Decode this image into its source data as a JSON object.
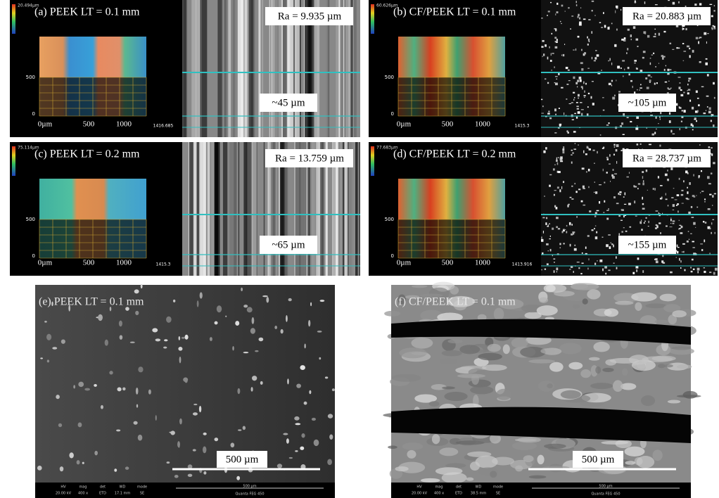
{
  "panels": [
    {
      "label": "(a) PEEK LT = 0.1 mm",
      "ra": "Ra = 9.935 µm",
      "depth": "~45 µm",
      "legend": "20.494µm",
      "x_axis": [
        "0µm",
        "500",
        "1000"
      ],
      "y_axis": [
        "500",
        "0"
      ],
      "corner": "1416.685"
    },
    {
      "label": "(b) CF/PEEK LT = 0.1 mm",
      "ra": "Ra = 20.883 µm",
      "depth": "~105 µm",
      "legend": "60.626µm",
      "x_axis": [
        "0µm",
        "500",
        "1000"
      ],
      "y_axis": [
        "500",
        "0"
      ],
      "corner": "1415.3"
    },
    {
      "label": "(c) PEEK LT = 0.2 mm",
      "ra": "Ra = 13.759 µm",
      "depth": "~65 µm",
      "legend": "75.114µm",
      "x_axis": [
        "0µm",
        "500",
        "1000"
      ],
      "y_axis": [
        "500",
        "0"
      ],
      "corner": "1415.3"
    },
    {
      "label": "(d) CF/PEEK LT = 0.2 mm",
      "ra": "Ra = 28.737 µm",
      "depth": "~155 µm",
      "legend": "77.683µm",
      "x_axis": [
        "0µm",
        "500",
        "1000"
      ],
      "y_axis": [
        "500",
        "0"
      ],
      "corner": "1413.916"
    }
  ],
  "sem": [
    {
      "label": "(e) PEEK  LT = 0.1 mm",
      "scale": "500 µm",
      "info_heads": [
        "HV",
        "mag",
        "det",
        "WD",
        "mode"
      ],
      "info_values": [
        "20.00 kV",
        "400 x",
        "ETD",
        "17.1 mm",
        "SE"
      ],
      "bar_scale": "500 µm",
      "instrument": "Quanta FEG 450"
    },
    {
      "label": "(f) CF/PEEK  LT = 0.1 mm",
      "scale": "500 µm",
      "info_heads": [
        "HV",
        "mag",
        "det",
        "WD",
        "mode"
      ],
      "info_values": [
        "20.00 kV",
        "400 x",
        "ETD",
        "38.5 mm",
        "SE"
      ],
      "bar_scale": "500 µm",
      "instrument": "Quanta FEG 450"
    }
  ]
}
